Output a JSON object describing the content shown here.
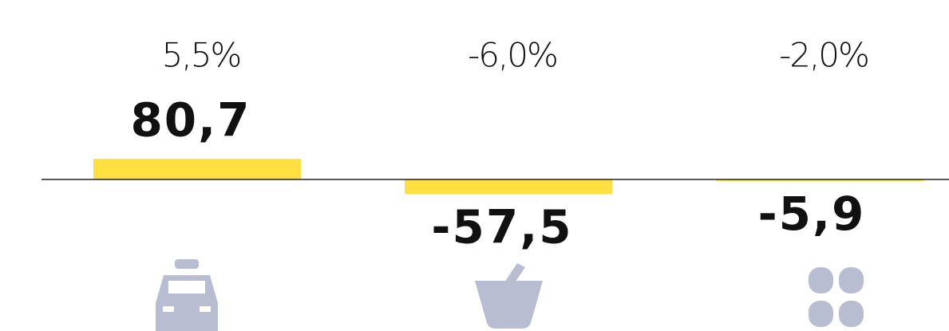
{
  "chart_data": {
    "type": "bar",
    "values": [
      80.7,
      -57.5,
      -5.9
    ],
    "value_labels": [
      "80,7",
      "-57,5",
      "-5,9"
    ],
    "annotations": [
      "5,5%",
      "-6,0%",
      "-2,0%"
    ],
    "color": "#ffe040",
    "ylim": [
      -100,
      100
    ]
  }
}
